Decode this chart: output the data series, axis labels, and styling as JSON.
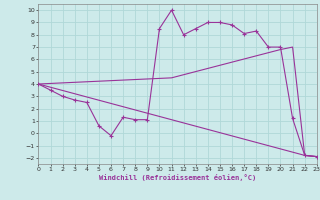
{
  "xlabel": "Windchill (Refroidissement éolien,°C)",
  "bg_color": "#cdeaea",
  "line_color": "#993399",
  "grid_color": "#b0d8d8",
  "xlim": [
    0,
    23
  ],
  "ylim": [
    -2.5,
    10.5
  ],
  "xticks": [
    0,
    1,
    2,
    3,
    4,
    5,
    6,
    7,
    8,
    9,
    10,
    11,
    12,
    13,
    14,
    15,
    16,
    17,
    18,
    19,
    20,
    21,
    22,
    23
  ],
  "yticks": [
    -2,
    -1,
    0,
    1,
    2,
    3,
    4,
    5,
    6,
    7,
    8,
    9,
    10
  ],
  "line1_x": [
    0,
    1,
    2,
    3,
    4,
    5,
    6,
    7,
    8,
    9,
    10,
    11,
    12,
    13,
    14,
    15,
    16,
    17,
    18,
    19,
    20,
    21,
    22,
    23
  ],
  "line1_y": [
    4.0,
    3.5,
    3.0,
    2.7,
    2.5,
    0.6,
    -0.2,
    1.3,
    1.1,
    1.1,
    8.5,
    10.0,
    8.0,
    8.5,
    9.0,
    9.0,
    8.8,
    8.1,
    8.3,
    7.0,
    7.0,
    1.2,
    -1.8,
    -1.9
  ],
  "line2_x": [
    0,
    22,
    23
  ],
  "line2_y": [
    4.0,
    -1.8,
    -1.9
  ],
  "line3_x": [
    0,
    11,
    20,
    21,
    22,
    23
  ],
  "line3_y": [
    4.0,
    4.5,
    6.8,
    7.0,
    -1.8,
    -1.9
  ]
}
